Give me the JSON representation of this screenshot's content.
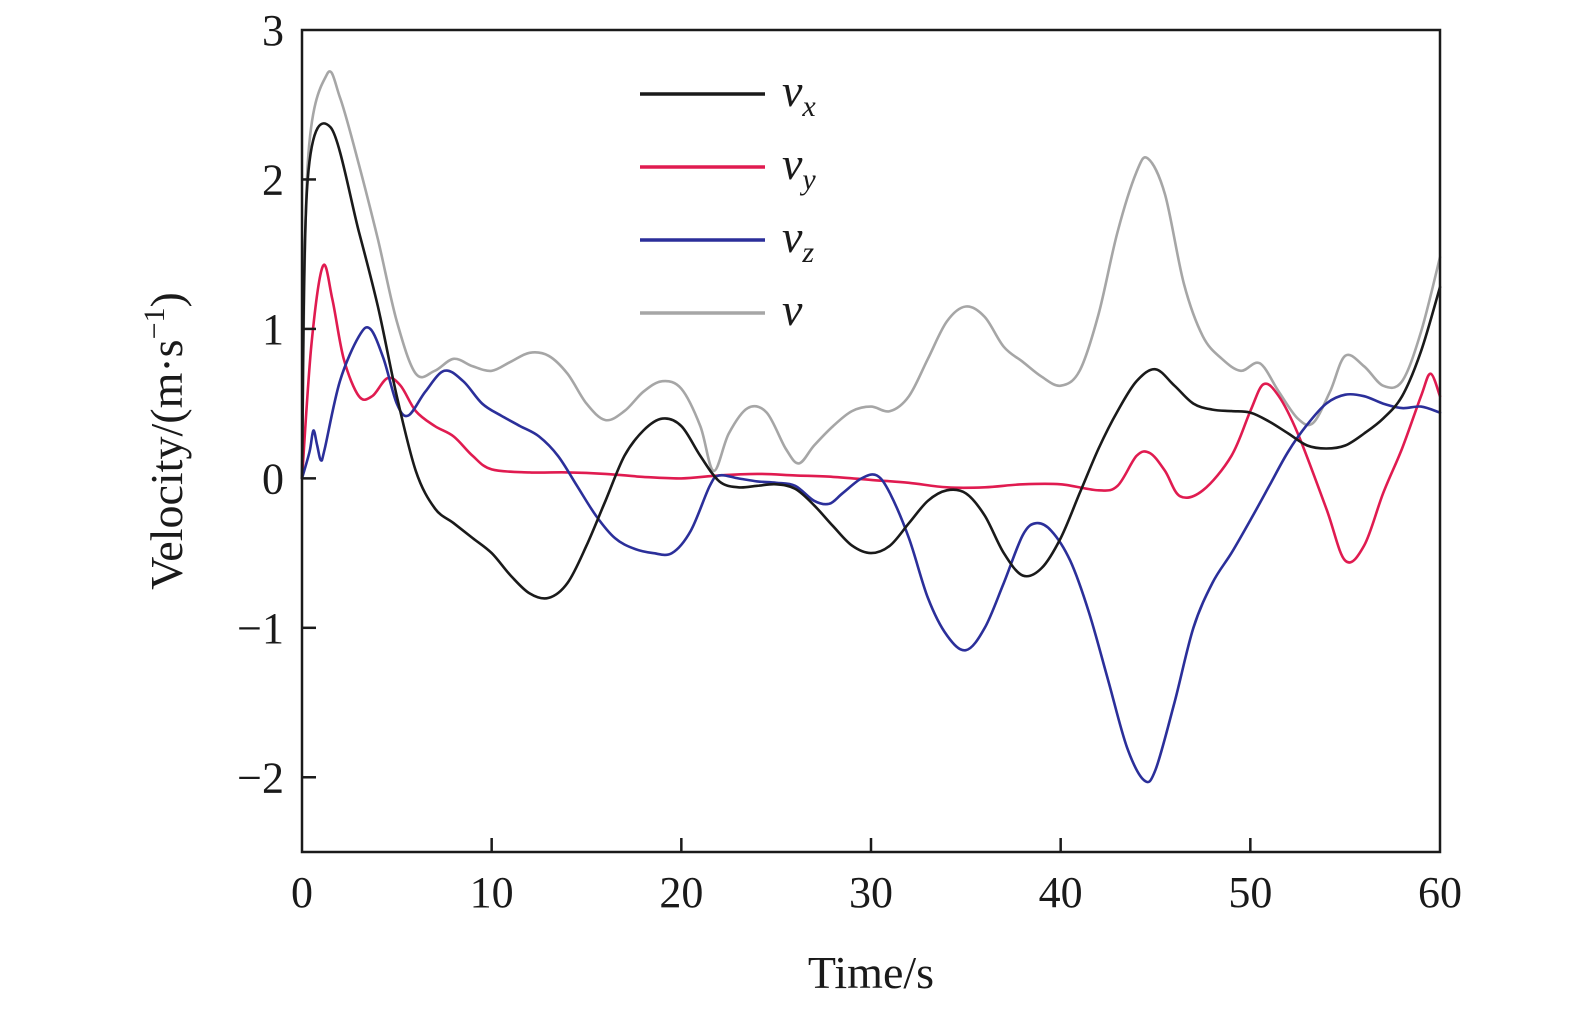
{
  "chart_data": {
    "type": "line",
    "xlabel": "Time/s",
    "ylabel": "Velocity/(m·s",
    "ylabel_sup": "−1",
    "ylabel_close": ")",
    "xlim": [
      0,
      60
    ],
    "ylim": [
      -2.5,
      3
    ],
    "x_ticks": [
      0,
      10,
      20,
      30,
      40,
      50,
      60
    ],
    "x_tick_labels": [
      "0",
      "10",
      "20",
      "30",
      "40",
      "50",
      "60"
    ],
    "y_ticks": [
      -2,
      -1,
      0,
      1,
      2,
      3
    ],
    "y_tick_labels": [
      "−2",
      "−1",
      "0",
      "1",
      "2",
      "3"
    ],
    "grid": false,
    "legend_position": "top-center",
    "series": [
      {
        "name": "v",
        "name_sub": "x",
        "color": "#1a1a1a",
        "points": [
          [
            0,
            0
          ],
          [
            0.3,
            2.0
          ],
          [
            1.5,
            2.35
          ],
          [
            3,
            1.65
          ],
          [
            4,
            1.15
          ],
          [
            5,
            0.55
          ],
          [
            6,
            0.05
          ],
          [
            7,
            -0.2
          ],
          [
            8,
            -0.3
          ],
          [
            9,
            -0.4
          ],
          [
            10,
            -0.5
          ],
          [
            11,
            -0.65
          ],
          [
            12,
            -0.77
          ],
          [
            13,
            -0.8
          ],
          [
            14,
            -0.7
          ],
          [
            15,
            -0.45
          ],
          [
            16,
            -0.15
          ],
          [
            17,
            0.15
          ],
          [
            18,
            0.32
          ],
          [
            19,
            0.4
          ],
          [
            20,
            0.35
          ],
          [
            21,
            0.15
          ],
          [
            22,
            -0.02
          ],
          [
            23,
            -0.06
          ],
          [
            24,
            -0.05
          ],
          [
            25,
            -0.04
          ],
          [
            26,
            -0.07
          ],
          [
            27,
            -0.18
          ],
          [
            28,
            -0.32
          ],
          [
            29,
            -0.45
          ],
          [
            30,
            -0.5
          ],
          [
            31,
            -0.45
          ],
          [
            32,
            -0.3
          ],
          [
            33,
            -0.15
          ],
          [
            34,
            -0.08
          ],
          [
            35,
            -0.1
          ],
          [
            36,
            -0.25
          ],
          [
            37,
            -0.5
          ],
          [
            38,
            -0.65
          ],
          [
            39,
            -0.6
          ],
          [
            40,
            -0.4
          ],
          [
            41,
            -0.1
          ],
          [
            42,
            0.2
          ],
          [
            43,
            0.45
          ],
          [
            44,
            0.65
          ],
          [
            45,
            0.73
          ],
          [
            46,
            0.62
          ],
          [
            47,
            0.5
          ],
          [
            48,
            0.46
          ],
          [
            49,
            0.45
          ],
          [
            50,
            0.44
          ],
          [
            51,
            0.38
          ],
          [
            52,
            0.3
          ],
          [
            53,
            0.22
          ],
          [
            54,
            0.2
          ],
          [
            55,
            0.22
          ],
          [
            56,
            0.3
          ],
          [
            57,
            0.4
          ],
          [
            58,
            0.55
          ],
          [
            59,
            0.85
          ],
          [
            60,
            1.28
          ]
        ]
      },
      {
        "name": "v",
        "name_sub": "y",
        "color": "#e01b50",
        "points": [
          [
            0,
            0
          ],
          [
            0.5,
            0.9
          ],
          [
            1.1,
            1.42
          ],
          [
            1.6,
            1.2
          ],
          [
            2.2,
            0.8
          ],
          [
            3,
            0.55
          ],
          [
            3.7,
            0.55
          ],
          [
            4.5,
            0.67
          ],
          [
            5.2,
            0.62
          ],
          [
            6,
            0.45
          ],
          [
            7,
            0.35
          ],
          [
            8,
            0.28
          ],
          [
            9,
            0.15
          ],
          [
            10,
            0.06
          ],
          [
            12,
            0.04
          ],
          [
            14,
            0.04
          ],
          [
            16,
            0.03
          ],
          [
            18,
            0.01
          ],
          [
            20,
            0.0
          ],
          [
            22,
            0.02
          ],
          [
            24,
            0.03
          ],
          [
            26,
            0.02
          ],
          [
            28,
            0.01
          ],
          [
            30,
            -0.01
          ],
          [
            32,
            -0.03
          ],
          [
            34,
            -0.06
          ],
          [
            36,
            -0.06
          ],
          [
            38,
            -0.04
          ],
          [
            40,
            -0.04
          ],
          [
            42,
            -0.08
          ],
          [
            43,
            -0.05
          ],
          [
            44,
            0.15
          ],
          [
            44.7,
            0.17
          ],
          [
            45.5,
            0.05
          ],
          [
            46.3,
            -0.12
          ],
          [
            47.5,
            -0.08
          ],
          [
            49,
            0.15
          ],
          [
            50,
            0.45
          ],
          [
            50.7,
            0.63
          ],
          [
            51.5,
            0.55
          ],
          [
            52.5,
            0.3
          ],
          [
            54,
            -0.2
          ],
          [
            55,
            -0.55
          ],
          [
            56,
            -0.45
          ],
          [
            57,
            -0.1
          ],
          [
            58,
            0.2
          ],
          [
            59,
            0.55
          ],
          [
            59.5,
            0.7
          ],
          [
            60,
            0.55
          ]
        ]
      },
      {
        "name": "v",
        "name_sub": "z",
        "color": "#2b2f9a",
        "points": [
          [
            0,
            0
          ],
          [
            0.4,
            0.18
          ],
          [
            0.6,
            0.32
          ],
          [
            0.8,
            0.22
          ],
          [
            1.0,
            0.12
          ],
          [
            1.2,
            0.2
          ],
          [
            2,
            0.65
          ],
          [
            3,
            0.95
          ],
          [
            3.6,
            1.0
          ],
          [
            4.3,
            0.8
          ],
          [
            5,
            0.5
          ],
          [
            5.6,
            0.42
          ],
          [
            6.5,
            0.58
          ],
          [
            7.5,
            0.72
          ],
          [
            8.5,
            0.65
          ],
          [
            9.5,
            0.5
          ],
          [
            10.5,
            0.42
          ],
          [
            11.5,
            0.35
          ],
          [
            12.5,
            0.28
          ],
          [
            13.5,
            0.15
          ],
          [
            14.5,
            -0.05
          ],
          [
            15.5,
            -0.25
          ],
          [
            16.5,
            -0.4
          ],
          [
            17.5,
            -0.47
          ],
          [
            18.5,
            -0.5
          ],
          [
            19.5,
            -0.5
          ],
          [
            20.5,
            -0.35
          ],
          [
            21.5,
            -0.05
          ],
          [
            22,
            0.02
          ],
          [
            23,
            0.0
          ],
          [
            24,
            -0.02
          ],
          [
            25,
            -0.03
          ],
          [
            26,
            -0.05
          ],
          [
            27,
            -0.15
          ],
          [
            27.8,
            -0.17
          ],
          [
            28.5,
            -0.1
          ],
          [
            29.5,
            0.0
          ],
          [
            30.3,
            0.02
          ],
          [
            31,
            -0.1
          ],
          [
            32,
            -0.4
          ],
          [
            33,
            -0.8
          ],
          [
            34,
            -1.05
          ],
          [
            35,
            -1.15
          ],
          [
            36,
            -1.0
          ],
          [
            37,
            -0.7
          ],
          [
            38,
            -0.38
          ],
          [
            38.7,
            -0.3
          ],
          [
            39.5,
            -0.35
          ],
          [
            40.5,
            -0.55
          ],
          [
            41.5,
            -0.9
          ],
          [
            42.5,
            -1.35
          ],
          [
            43.5,
            -1.8
          ],
          [
            44.4,
            -2.02
          ],
          [
            45,
            -1.95
          ],
          [
            46,
            -1.5
          ],
          [
            47,
            -1.0
          ],
          [
            48,
            -0.7
          ],
          [
            49,
            -0.5
          ],
          [
            50,
            -0.28
          ],
          [
            51,
            -0.05
          ],
          [
            52,
            0.18
          ],
          [
            53,
            0.36
          ],
          [
            54,
            0.5
          ],
          [
            55,
            0.56
          ],
          [
            56,
            0.55
          ],
          [
            57,
            0.5
          ],
          [
            58,
            0.47
          ],
          [
            59,
            0.48
          ],
          [
            60,
            0.44
          ]
        ]
      },
      {
        "name": "v",
        "name_sub": "",
        "color": "#a6a6a6",
        "points": [
          [
            0,
            0
          ],
          [
            0.3,
            2.1
          ],
          [
            1.3,
            2.7
          ],
          [
            2,
            2.55
          ],
          [
            3,
            2.1
          ],
          [
            4,
            1.6
          ],
          [
            5,
            1.05
          ],
          [
            6,
            0.7
          ],
          [
            7,
            0.72
          ],
          [
            8,
            0.8
          ],
          [
            9,
            0.75
          ],
          [
            10,
            0.72
          ],
          [
            11,
            0.78
          ],
          [
            12,
            0.84
          ],
          [
            13,
            0.82
          ],
          [
            14,
            0.7
          ],
          [
            15,
            0.5
          ],
          [
            16,
            0.39
          ],
          [
            17,
            0.45
          ],
          [
            18,
            0.58
          ],
          [
            19,
            0.65
          ],
          [
            20,
            0.6
          ],
          [
            21,
            0.35
          ],
          [
            21.7,
            0.05
          ],
          [
            22.5,
            0.3
          ],
          [
            23.5,
            0.47
          ],
          [
            24.5,
            0.44
          ],
          [
            25.5,
            0.2
          ],
          [
            26.2,
            0.1
          ],
          [
            27,
            0.22
          ],
          [
            28,
            0.35
          ],
          [
            29,
            0.45
          ],
          [
            30,
            0.48
          ],
          [
            31,
            0.45
          ],
          [
            32,
            0.55
          ],
          [
            33,
            0.8
          ],
          [
            34,
            1.05
          ],
          [
            35,
            1.15
          ],
          [
            36,
            1.08
          ],
          [
            37,
            0.88
          ],
          [
            38,
            0.78
          ],
          [
            39,
            0.68
          ],
          [
            40,
            0.62
          ],
          [
            41,
            0.72
          ],
          [
            42,
            1.1
          ],
          [
            43,
            1.65
          ],
          [
            44,
            2.05
          ],
          [
            44.6,
            2.14
          ],
          [
            45.5,
            1.9
          ],
          [
            46.5,
            1.3
          ],
          [
            47.5,
            0.95
          ],
          [
            48.5,
            0.8
          ],
          [
            49.5,
            0.72
          ],
          [
            50.5,
            0.77
          ],
          [
            51.5,
            0.58
          ],
          [
            52.5,
            0.4
          ],
          [
            53.3,
            0.37
          ],
          [
            54.2,
            0.58
          ],
          [
            55,
            0.82
          ],
          [
            56,
            0.75
          ],
          [
            57,
            0.62
          ],
          [
            58,
            0.65
          ],
          [
            59,
            0.98
          ],
          [
            60,
            1.48
          ]
        ]
      }
    ]
  }
}
